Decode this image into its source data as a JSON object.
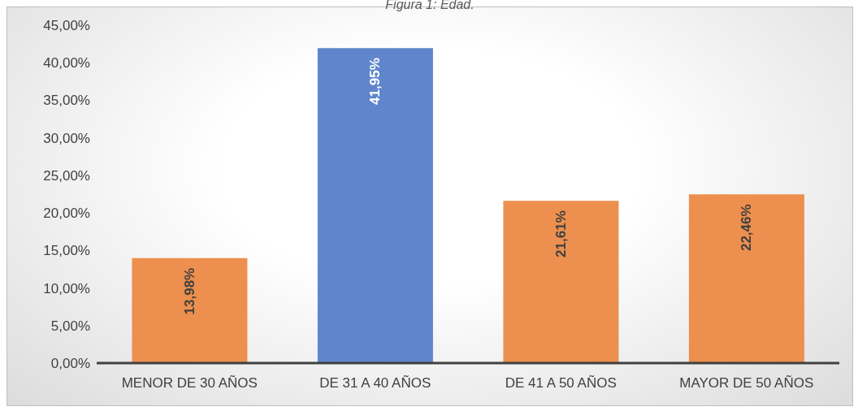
{
  "chart_data": {
    "type": "bar",
    "title": "Figura 1: Edad.",
    "categories": [
      "MENOR DE 30 AÑOS",
      "DE 31 A 40 AÑOS",
      "DE 41 A 50 AÑOS",
      "MAYOR DE 50 AÑOS"
    ],
    "values": [
      13.98,
      41.95,
      21.61,
      22.46
    ],
    "colors": [
      "#ed8f4e",
      "#5f86cc",
      "#ed8f4e",
      "#ed8f4e"
    ],
    "value_labels": [
      "13,98%",
      "41,95%",
      "21,61%",
      "22,46%"
    ],
    "ylim": [
      0,
      45
    ],
    "yticks": [
      {
        "value": 0,
        "label": "0,00%"
      },
      {
        "value": 5,
        "label": "5,00%"
      },
      {
        "value": 10,
        "label": "10,00%"
      },
      {
        "value": 15,
        "label": "15,00%"
      },
      {
        "value": 20,
        "label": "20,00%"
      },
      {
        "value": 25,
        "label": "25,00%"
      },
      {
        "value": 30,
        "label": "30,00%"
      },
      {
        "value": 35,
        "label": "35,00%"
      },
      {
        "value": 40,
        "label": "40,00%"
      },
      {
        "value": 45,
        "label": "45,00%"
      }
    ],
    "grid": false,
    "legend": false
  }
}
